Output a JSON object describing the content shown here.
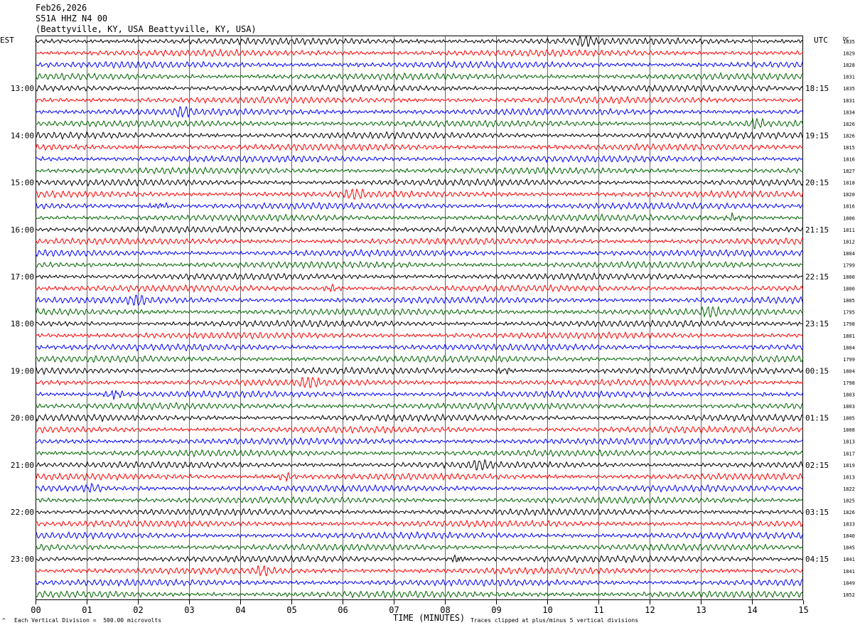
{
  "header": {
    "date": "Feb26,2026",
    "channel": "S51A HHZ N4 00",
    "location": "(Beattyville, KY, USA Beattyville, KY, USA)"
  },
  "labels": {
    "left_tz": "EST",
    "right_tz": "UTC",
    "dc_label": "DC",
    "x_title": "TIME (MINUTES)",
    "scale_note": "Each Vertical Division =  500.00 microvolts",
    "clip_note": "Traces clipped at plus/minus 5 vertical divisions"
  },
  "chart_data": {
    "type": "line",
    "title": "",
    "xlabel": "TIME (MINUTES)",
    "xlim": [
      0,
      15
    ],
    "x_ticks": [
      "00",
      "01",
      "02",
      "03",
      "04",
      "05",
      "06",
      "07",
      "08",
      "09",
      "10",
      "11",
      "12",
      "13",
      "14",
      "15"
    ],
    "rows_per_hour": 4,
    "trace_colors": [
      "#000000",
      "#ff0000",
      "#0000ff",
      "#006400"
    ],
    "left_hour_labels": [
      "13:00",
      "14:00",
      "15:00",
      "16:00",
      "17:00",
      "18:00",
      "19:00",
      "20:00",
      "21:00",
      "22:00",
      "23:00"
    ],
    "right_hour_labels": [
      "18:15",
      "19:15",
      "20:15",
      "21:15",
      "22:15",
      "23:15",
      "00:15",
      "01:15",
      "02:15",
      "03:15",
      "04:15"
    ],
    "dc_offsets": [
      "1835",
      "1829",
      "1828",
      "1831",
      "1835",
      "1831",
      "1834",
      "1826",
      "1826",
      "1815",
      "1816",
      "1827",
      "1818",
      "1820",
      "1816",
      "1806",
      "1811",
      "1812",
      "1804",
      "1799",
      "1800",
      "1800",
      "1805",
      "1795",
      "1798",
      "1801",
      "1804",
      "1799",
      "1804",
      "1798",
      "1803",
      "1803",
      "1805",
      "1808",
      "1813",
      "1817",
      "1819",
      "1813",
      "1822",
      "1825",
      "1826",
      "1833",
      "1840",
      "1845",
      "1841",
      "1841",
      "1849",
      "1852"
    ]
  }
}
